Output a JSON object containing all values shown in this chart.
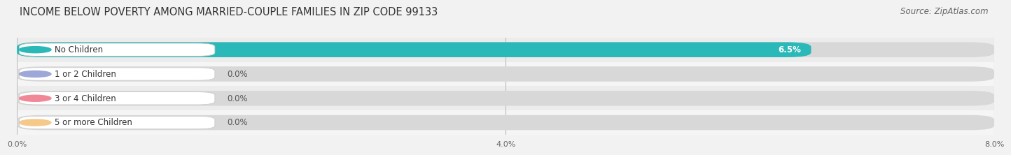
{
  "title": "INCOME BELOW POVERTY AMONG MARRIED-COUPLE FAMILIES IN ZIP CODE 99133",
  "source": "Source: ZipAtlas.com",
  "categories": [
    "No Children",
    "1 or 2 Children",
    "3 or 4 Children",
    "5 or more Children"
  ],
  "values": [
    6.5,
    0.0,
    0.0,
    0.0
  ],
  "bar_colors": [
    "#2ab8b8",
    "#9ea8d8",
    "#f08898",
    "#f5c98a"
  ],
  "xlim": [
    0,
    8.0
  ],
  "xticks": [
    0.0,
    4.0,
    8.0
  ],
  "xtick_labels": [
    "0.0%",
    "4.0%",
    "8.0%"
  ],
  "bg_color": "#f2f2f2",
  "bar_bg_color": "#e0e0e0",
  "row_bg_colors": [
    "#e8e8e8",
    "#efefef",
    "#e8e8e8",
    "#efefef"
  ],
  "title_fontsize": 10.5,
  "source_fontsize": 8.5,
  "bar_label_fontsize": 8.5,
  "value_label_fontsize": 8.5
}
